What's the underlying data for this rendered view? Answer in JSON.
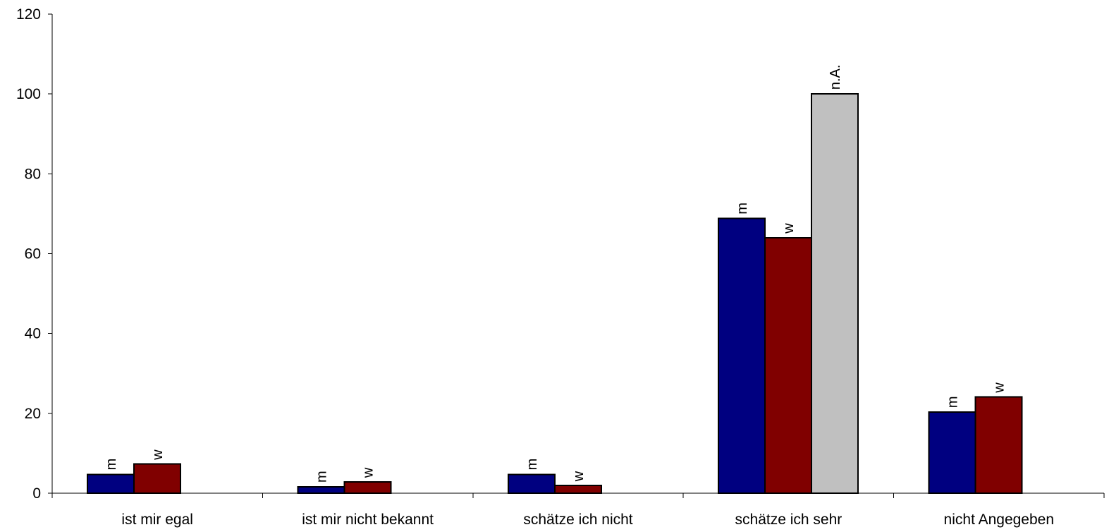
{
  "chart_data": {
    "type": "bar",
    "title": "",
    "xlabel": "",
    "ylabel": "",
    "ylim": [
      0,
      120
    ],
    "y_ticks": [
      0,
      20,
      40,
      60,
      80,
      100,
      120
    ],
    "grid": false,
    "legend": "none",
    "categories": [
      "ist mir egal",
      "ist mir nicht bekannt",
      "schätze ich nicht",
      "schätze ich sehr",
      "nicht Angegeben"
    ],
    "series": [
      {
        "name": "m",
        "color": "#000080",
        "values": [
          4.7,
          1.6,
          4.7,
          68.8,
          20.3
        ]
      },
      {
        "name": "w",
        "color": "#800000",
        "values": [
          7.3,
          2.8,
          1.9,
          64.0,
          24.1
        ]
      },
      {
        "name": "n.A.",
        "color": "#C0C0C0",
        "values": [
          0,
          0,
          0,
          100,
          0
        ]
      }
    ]
  }
}
